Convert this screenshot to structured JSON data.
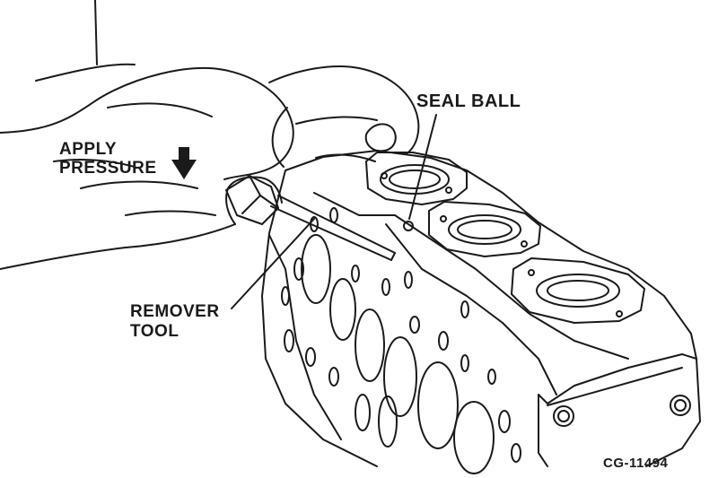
{
  "labels": {
    "apply": "APPLY",
    "pressure": "PRESSURE",
    "seal_ball": "SEAL BALL",
    "remover": "REMOVER",
    "tool": "TOOL",
    "figure_code": "CG-11494"
  },
  "colors": {
    "ink": "#1a1a1a",
    "paper": "#ffffff"
  },
  "icons": {
    "pressure_arrow": "down-arrow-icon"
  }
}
